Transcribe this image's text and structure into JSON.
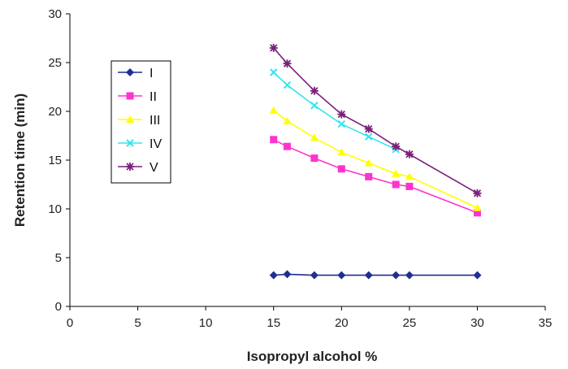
{
  "chart_data": {
    "type": "line",
    "title": "",
    "xlabel": "Isopropyl alcohol %",
    "ylabel": "Retention time (min)",
    "xlim": [
      0,
      35
    ],
    "ylim": [
      0,
      30
    ],
    "xticks": [
      0,
      5,
      10,
      15,
      20,
      25,
      30,
      35
    ],
    "yticks": [
      0,
      5,
      10,
      15,
      20,
      25,
      30
    ],
    "grid": false,
    "legend_position": "left",
    "series": [
      {
        "name": "I",
        "color": "#1f2f8f",
        "marker": "diamond",
        "x": [
          15,
          16,
          18,
          20,
          22,
          24,
          25,
          30
        ],
        "y": [
          3.2,
          3.3,
          3.2,
          3.2,
          3.2,
          3.2,
          3.2,
          3.2
        ]
      },
      {
        "name": "II",
        "color": "#ff33cc",
        "marker": "square",
        "x": [
          15,
          16,
          18,
          20,
          22,
          24,
          25,
          30
        ],
        "y": [
          17.1,
          16.4,
          15.2,
          14.1,
          13.3,
          12.5,
          12.3,
          9.6
        ]
      },
      {
        "name": "III",
        "color": "#ffff00",
        "marker": "triangle",
        "x": [
          15,
          16,
          18,
          20,
          22,
          24,
          25,
          30
        ],
        "y": [
          20.1,
          19.0,
          17.3,
          15.8,
          14.7,
          13.6,
          13.3,
          10.1
        ]
      },
      {
        "name": "IV",
        "color": "#33e5ee",
        "marker": "x",
        "x": [
          15,
          16,
          18,
          20,
          22,
          24
        ],
        "y": [
          24.0,
          22.7,
          20.6,
          18.7,
          17.4,
          16.1
        ]
      },
      {
        "name": "V",
        "color": "#7b1f7b",
        "marker": "asterisk",
        "x": [
          15,
          16,
          18,
          20,
          22,
          24,
          25,
          30
        ],
        "y": [
          26.5,
          24.9,
          22.1,
          19.7,
          18.2,
          16.4,
          15.6,
          11.6
        ]
      }
    ]
  }
}
